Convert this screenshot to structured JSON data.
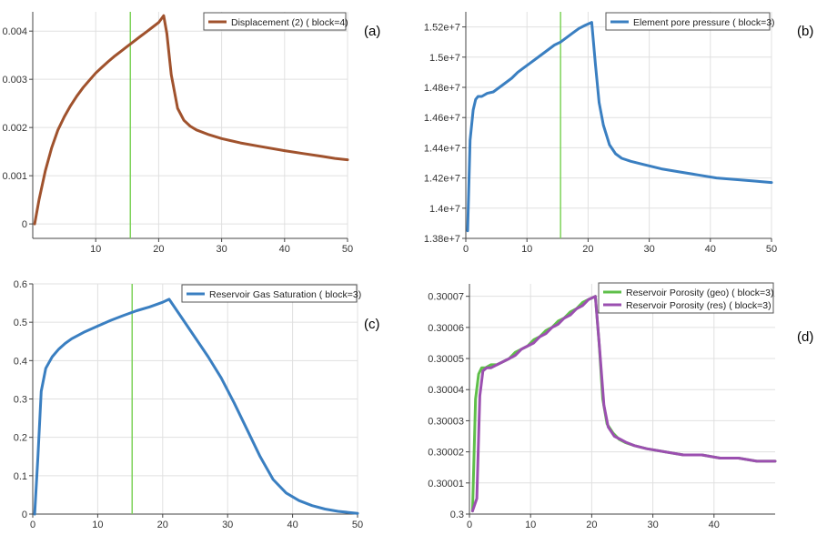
{
  "panel_labels": [
    "(a)",
    "(b)",
    "(c)",
    "(d)"
  ],
  "colors": {
    "brown": "#a0522d",
    "blue": "#3a7fc1",
    "green": "#5fbf4a",
    "purple": "#9b4fb0",
    "marker": "#7ed35a",
    "axis": "#444444",
    "grid": "#e0e0e0"
  },
  "chart_data": [
    {
      "type": "line",
      "panel": "(a)",
      "title": "",
      "xlabel": "",
      "ylabel": "",
      "xlim": [
        0,
        50
      ],
      "ylim": [
        -0.0003,
        0.0044
      ],
      "x_ticks": [
        10,
        20,
        30,
        40,
        50
      ],
      "x_tick_labels": [
        "10",
        "20",
        "30",
        "40",
        "50"
      ],
      "y_ticks": [
        0,
        0.001,
        0.002,
        0.003,
        0.004
      ],
      "y_tick_labels": [
        "0",
        "0.001",
        "0.002",
        "0.003",
        "0.004"
      ],
      "vline_x": 15.5,
      "legend_position": "top-right",
      "series": [
        {
          "name": "Displacement (2) ( block=4)",
          "color": "#a0522d",
          "x": [
            0.3,
            1,
            2,
            3,
            4,
            5,
            6,
            7,
            8,
            9,
            10,
            11,
            12,
            13,
            14,
            15,
            16,
            17,
            18,
            19,
            20,
            20.8,
            21.3,
            22,
            23,
            24,
            25,
            26,
            28,
            30,
            33,
            36,
            40,
            43,
            46,
            48,
            50
          ],
          "y": [
            0.0,
            0.0005,
            0.0011,
            0.00158,
            0.00195,
            0.00222,
            0.00245,
            0.00265,
            0.00283,
            0.00298,
            0.00313,
            0.00325,
            0.00337,
            0.00348,
            0.00358,
            0.00368,
            0.00378,
            0.00388,
            0.00398,
            0.00408,
            0.00418,
            0.00432,
            0.00395,
            0.0031,
            0.0024,
            0.00215,
            0.00203,
            0.00195,
            0.00185,
            0.00177,
            0.00168,
            0.00161,
            0.00152,
            0.00146,
            0.0014,
            0.00136,
            0.00133
          ]
        }
      ]
    },
    {
      "type": "line",
      "panel": "(b)",
      "title": "",
      "xlabel": "",
      "ylabel": "",
      "xlim": [
        0,
        50
      ],
      "ylim": [
        13800000,
        15300000
      ],
      "x_ticks": [
        0,
        10,
        20,
        30,
        40,
        50
      ],
      "x_tick_labels": [
        "0",
        "10",
        "20",
        "30",
        "40",
        "50"
      ],
      "y_ticks": [
        13800000,
        14000000,
        14200000,
        14400000,
        14600000,
        14800000,
        15000000,
        15200000
      ],
      "y_tick_labels": [
        "1.38e+7",
        "1.4e+7",
        "1.42e+7",
        "1.44e+7",
        "1.46e+7",
        "1.48e+7",
        "1.5e+7",
        "1.52e+7"
      ],
      "vline_x": 15.5,
      "legend_position": "top-right",
      "series": [
        {
          "name": "Element pore pressure ( block=3)",
          "color": "#3a7fc1",
          "x": [
            0.3,
            0.7,
            1.2,
            1.6,
            2.0,
            2.6,
            3.5,
            4.5,
            5.5,
            6.5,
            7.5,
            8.5,
            9.5,
            10.5,
            11.5,
            12.5,
            13.5,
            14.5,
            15.5,
            16.5,
            17.5,
            18.5,
            19.5,
            20.6,
            21.2,
            21.8,
            22.5,
            23.5,
            24.5,
            25.5,
            27,
            29,
            32,
            35,
            38,
            41,
            44,
            47,
            50
          ],
          "y": [
            13850000,
            14450000,
            14650000,
            14720000,
            14740000,
            14740000,
            14760000,
            14770000,
            14800000,
            14830000,
            14860000,
            14900000,
            14930000,
            14960000,
            14990000,
            15020000,
            15050000,
            15080000,
            15100000,
            15130000,
            15160000,
            15190000,
            15210000,
            15230000,
            14950000,
            14700000,
            14550000,
            14420000,
            14360000,
            14330000,
            14310000,
            14290000,
            14260000,
            14240000,
            14220000,
            14200000,
            14190000,
            14180000,
            14170000
          ]
        }
      ]
    },
    {
      "type": "line",
      "panel": "(c)",
      "title": "",
      "xlabel": "",
      "ylabel": "",
      "xlim": [
        0,
        50
      ],
      "ylim": [
        0,
        0.6
      ],
      "x_ticks": [
        0,
        10,
        20,
        30,
        40,
        50
      ],
      "x_tick_labels": [
        "0",
        "10",
        "20",
        "30",
        "40",
        "50"
      ],
      "y_ticks": [
        0,
        0.1,
        0.2,
        0.3,
        0.4,
        0.5,
        0.6
      ],
      "y_tick_labels": [
        "0",
        "0.1",
        "0.2",
        "0.3",
        "0.4",
        "0.5",
        "0.6"
      ],
      "vline_x": 15.3,
      "legend_position": "top-right",
      "series": [
        {
          "name": "Reservoir Gas Saturation ( block=3)",
          "color": "#3a7fc1",
          "x": [
            0.3,
            0.8,
            1.3,
            2,
            3,
            4,
            5,
            6,
            8,
            10,
            12,
            14,
            16,
            18,
            20,
            21,
            23,
            25,
            27,
            29,
            31,
            33,
            35,
            37,
            39,
            41,
            43,
            45,
            47,
            50
          ],
          "y": [
            0.0,
            0.15,
            0.32,
            0.38,
            0.41,
            0.43,
            0.445,
            0.457,
            0.475,
            0.49,
            0.505,
            0.518,
            0.53,
            0.54,
            0.552,
            0.56,
            0.51,
            0.46,
            0.41,
            0.355,
            0.29,
            0.22,
            0.15,
            0.09,
            0.055,
            0.035,
            0.022,
            0.013,
            0.007,
            0.002
          ]
        }
      ]
    },
    {
      "type": "line",
      "panel": "(d)",
      "title": "",
      "xlabel": "",
      "ylabel": "",
      "xlim": [
        0,
        50
      ],
      "ylim": [
        0.3,
        0.300074
      ],
      "x_ticks": [
        0,
        10,
        20,
        30,
        40
      ],
      "x_tick_labels": [
        "0",
        "10",
        "20",
        "30",
        "40"
      ],
      "y_ticks": [
        0.3,
        0.30001,
        0.30002,
        0.30003,
        0.30004,
        0.30005,
        0.30006,
        0.30007
      ],
      "y_tick_labels": [
        "0.3",
        "0.30001",
        "0.30002",
        "0.30003",
        "0.30004",
        "0.30005",
        "0.30006",
        "0.30007"
      ],
      "legend_position": "top-right",
      "series": [
        {
          "name": "Reservoir Porosity (geo) ( block=3)",
          "color": "#5fbf4a",
          "x": [
            0.5,
            1.0,
            1.5,
            2.0,
            2.6,
            3.5,
            4.5,
            5.5,
            6.5,
            7.5,
            8.5,
            9.5,
            10.5,
            11.5,
            12.5,
            13.5,
            14.5,
            15.5,
            16.5,
            17.5,
            18.5,
            19.5,
            20.6,
            21.2,
            21.8,
            22.5,
            23.5,
            24.5,
            25.5,
            27,
            29,
            32,
            35,
            38,
            41,
            44,
            47,
            50
          ],
          "y": [
            0.300001,
            0.300037,
            0.300045,
            0.300047,
            0.300047,
            0.300048,
            0.300048,
            0.300049,
            0.30005,
            0.300052,
            0.300053,
            0.300054,
            0.300056,
            0.300057,
            0.300059,
            0.30006,
            0.300062,
            0.300063,
            0.300065,
            0.300066,
            0.300068,
            0.300069,
            0.30007,
            0.300055,
            0.300037,
            0.300029,
            0.300026,
            0.300024,
            0.300023,
            0.300022,
            0.300021,
            0.30002,
            0.300019,
            0.300019,
            0.300018,
            0.300018,
            0.300017,
            0.300017
          ]
        },
        {
          "name": "Reservoir Porosity (res) ( block=3)",
          "color": "#9b4fb0",
          "x": [
            0.5,
            1.2,
            1.7,
            2.2,
            2.8,
            3.5,
            4.5,
            5.5,
            6.5,
            7.5,
            8.5,
            9.5,
            10.5,
            11.5,
            12.5,
            13.5,
            14.5,
            15.5,
            16.5,
            17.5,
            18.5,
            19.5,
            20.6,
            21.3,
            22.0,
            22.7,
            23.7,
            24.7,
            25.7,
            27,
            29,
            32,
            35,
            38,
            41,
            44,
            47,
            50
          ],
          "y": [
            0.300001,
            0.300005,
            0.300038,
            0.300046,
            0.300047,
            0.300047,
            0.300048,
            0.300049,
            0.30005,
            0.300051,
            0.300053,
            0.300054,
            0.300055,
            0.300057,
            0.300058,
            0.30006,
            0.300061,
            0.300063,
            0.300064,
            0.300066,
            0.300067,
            0.300069,
            0.30007,
            0.300053,
            0.300035,
            0.300028,
            0.300025,
            0.300024,
            0.300023,
            0.300022,
            0.300021,
            0.30002,
            0.300019,
            0.300019,
            0.300018,
            0.300018,
            0.300017,
            0.300017
          ]
        }
      ]
    }
  ]
}
